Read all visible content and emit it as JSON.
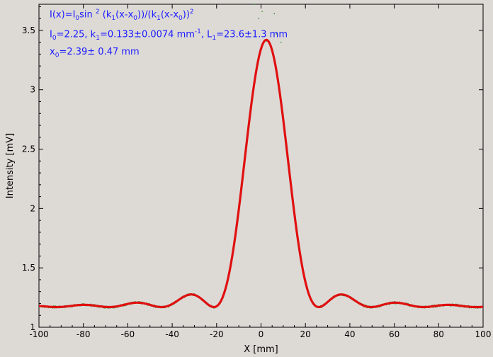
{
  "chart_data": {
    "type": "scatter",
    "xlabel": "X [mm]",
    "ylabel": "Intensity [mV]",
    "xlim": [
      -100,
      100
    ],
    "ylim": [
      1.0,
      3.72
    ],
    "x_ticks": [
      -100,
      -80,
      -60,
      -40,
      -20,
      0,
      20,
      40,
      60,
      80,
      100
    ],
    "y_ticks": [
      1,
      1.5,
      2,
      2.5,
      3,
      3.5
    ],
    "x_tick_labels": [
      "-100",
      "-80",
      "-60",
      "-40",
      "-20",
      "0",
      "20",
      "40",
      "60",
      "80",
      "100"
    ],
    "y_tick_labels": [
      "1",
      "1.5",
      "2",
      "2.5",
      "3",
      "3.5"
    ],
    "grid": false,
    "model": {
      "I0": 2.25,
      "k1": 0.133,
      "x0": 2.39,
      "baseline": 1.17
    },
    "series": [
      {
        "color": "#1a8a1a",
        "kind": "measured points"
      },
      {
        "color": "#e01010",
        "kind": "fit curve"
      }
    ],
    "annotations": {
      "formula": {
        "p1": "I(x)=I",
        "s1": "0",
        "p2": "sin ",
        "sup1": "2",
        "p3": " (k",
        "s2": "1",
        "p4": "(x-x",
        "s3": "0",
        "p5": "))/(k",
        "s4": "1",
        "p6": "(x-x",
        "s5": "0",
        "p7": "))",
        "sup2": "2"
      },
      "params": {
        "p1": "I",
        "s1": "0",
        "p2": "=2.25,  k",
        "s2": "1",
        "p3": "=0.133±0.0074 mm",
        "sup1": "-1",
        "p4": ",   L",
        "s3": "1",
        "p5": "=23.6±1.3 mm"
      },
      "x0": {
        "p1": "x",
        "s1": "0",
        "p2": "=2.39±   0.47 mm"
      }
    }
  }
}
